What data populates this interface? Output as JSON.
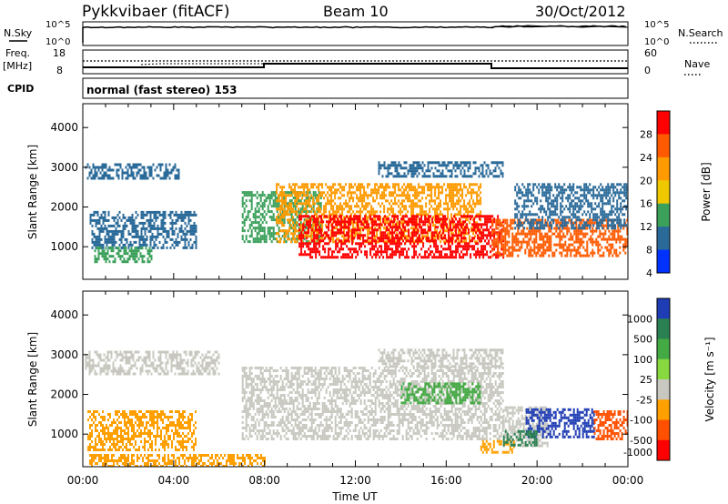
{
  "header": {
    "station": "Pykkvibaer (fitACF)",
    "beam": "Beam 10",
    "date": "30/Oct/2012"
  },
  "labels": {
    "nsky": "N.Sky",
    "nsky_top": "10^5",
    "nsky_bottom": "10^0",
    "nsearch": "N.Search",
    "nsearch_top": "10^5",
    "nsearch_bottom": "10^0",
    "freq_line1": "Freq.",
    "freq_line2": "[MHz]",
    "freq_top": "18",
    "freq_bottom": "8",
    "nave": "Nave",
    "nave_top": "60",
    "nave_bottom": "0",
    "cpid": "CPID",
    "cpid_text": "normal (fast stereo) 153",
    "xlabel": "Time UT",
    "power_label": "Power [dB]",
    "velocity_label": "Velocity [m s⁻¹]"
  },
  "chart_data": [
    {
      "type": "heatmap",
      "name": "power",
      "ylabel": "Slant Range [km]",
      "xlabel": "Time UT",
      "ylim": [
        180,
        4600
      ],
      "xlim_hours": [
        0,
        24
      ],
      "x_tick_labels": [
        "00:00",
        "04:00",
        "08:00",
        "12:00",
        "16:00",
        "20:00",
        "00:00"
      ],
      "x_tick_hours": [
        0,
        4,
        8,
        12,
        16,
        20,
        24
      ],
      "y_ticks": [
        1000,
        2000,
        3000,
        4000
      ],
      "colorbar": {
        "ticks": [
          "28",
          "24",
          "20",
          "16",
          "12",
          "8",
          "4"
        ],
        "colors": [
          "#ff0000",
          "#ff5a00",
          "#ff9a00",
          "#f0c800",
          "#3aa05a",
          "#2a6a99",
          "#0032ff"
        ]
      },
      "regions": [
        {
          "t0": 0.1,
          "t1": 4.2,
          "r0": 2700,
          "r1": 3100,
          "color": "#2a6a99"
        },
        {
          "t0": 0.3,
          "t1": 5.0,
          "r0": 950,
          "r1": 1900,
          "color": "#2a6a99"
        },
        {
          "t0": 0.5,
          "t1": 3.0,
          "r0": 600,
          "r1": 1000,
          "color": "#3aa05a"
        },
        {
          "t0": 7.0,
          "t1": 10.5,
          "r0": 1100,
          "r1": 2400,
          "color": "#3aa05a"
        },
        {
          "t0": 8.5,
          "t1": 17.5,
          "r0": 1100,
          "r1": 2600,
          "color": "#ff9a00"
        },
        {
          "t0": 9.5,
          "t1": 18.5,
          "r0": 750,
          "r1": 1800,
          "color": "#ff0000"
        },
        {
          "t0": 18.0,
          "t1": 24.0,
          "r0": 750,
          "r1": 1700,
          "color": "#ff5a00"
        },
        {
          "t0": 19.0,
          "t1": 24.0,
          "r0": 1500,
          "r1": 2600,
          "color": "#2a6a99"
        },
        {
          "t0": 13.0,
          "t1": 18.5,
          "r0": 2800,
          "r1": 3150,
          "color": "#2a6a99"
        }
      ]
    },
    {
      "type": "heatmap",
      "name": "velocity",
      "ylabel": "Slant Range [km]",
      "xlabel": "Time UT",
      "ylim": [
        180,
        4600
      ],
      "xlim_hours": [
        0,
        24
      ],
      "x_tick_labels": [
        "00:00",
        "04:00",
        "08:00",
        "12:00",
        "16:00",
        "20:00",
        "00:00"
      ],
      "x_tick_hours": [
        0,
        4,
        8,
        12,
        16,
        20,
        24
      ],
      "y_ticks": [
        1000,
        2000,
        3000,
        4000
      ],
      "colorbar": {
        "ticks": [
          "1000",
          "500",
          "100",
          "25",
          "-25",
          "-100",
          "-500",
          "-1000"
        ],
        "colors": [
          "#1e3cb4",
          "#2a8050",
          "#44aa44",
          "#88d840",
          "#c8c8c0",
          "#ffa000",
          "#ff5000",
          "#ff0000"
        ]
      },
      "regions": [
        {
          "t0": 0.1,
          "t1": 6.0,
          "r0": 2500,
          "r1": 3100,
          "color": "#c8c8c0"
        },
        {
          "t0": 0.2,
          "t1": 5.0,
          "r0": 600,
          "r1": 1600,
          "color": "#ffa000"
        },
        {
          "t0": 0.2,
          "t1": 8.0,
          "r0": 200,
          "r1": 500,
          "color": "#ffa000"
        },
        {
          "t0": 7.0,
          "t1": 18.5,
          "r0": 900,
          "r1": 2700,
          "color": "#c8c8c0"
        },
        {
          "t0": 13.0,
          "t1": 18.5,
          "r0": 2700,
          "r1": 3150,
          "color": "#c8c8c0"
        },
        {
          "t0": 14.0,
          "t1": 17.5,
          "r0": 1800,
          "r1": 2300,
          "color": "#44aa44"
        },
        {
          "t0": 18.5,
          "t1": 20.5,
          "r0": 700,
          "r1": 1700,
          "color": "#c8c8c0"
        },
        {
          "t0": 19.5,
          "t1": 22.5,
          "r0": 950,
          "r1": 1650,
          "color": "#1e3cb4"
        },
        {
          "t0": 17.5,
          "t1": 19.0,
          "r0": 550,
          "r1": 850,
          "color": "#ffa000"
        },
        {
          "t0": 22.5,
          "t1": 24.0,
          "r0": 900,
          "r1": 1600,
          "color": "#ff5000"
        },
        {
          "t0": 18.5,
          "t1": 20.0,
          "r0": 700,
          "r1": 1100,
          "color": "#2a8050"
        }
      ]
    }
  ]
}
